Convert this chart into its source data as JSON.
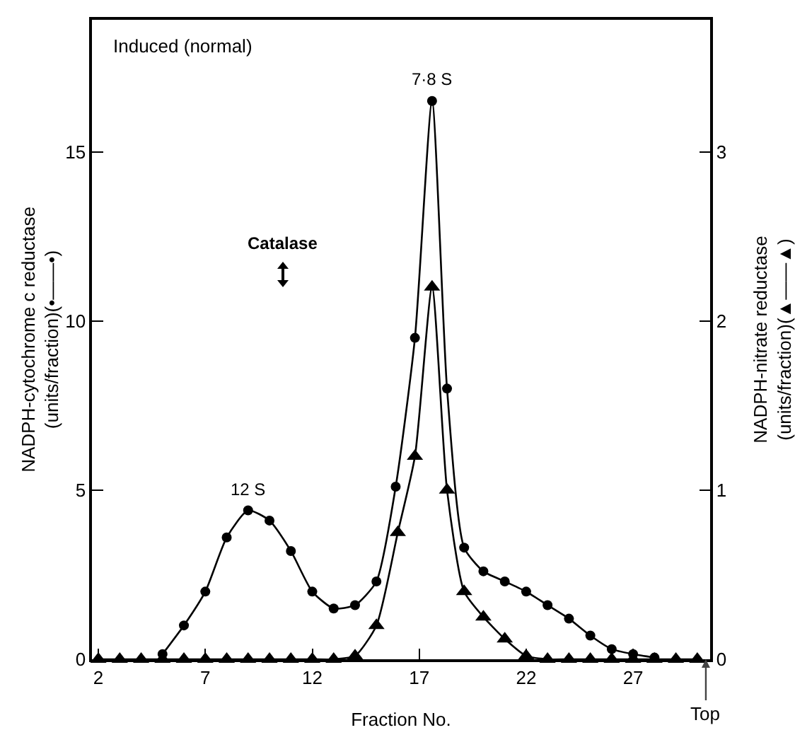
{
  "chart_data": {
    "type": "line",
    "title": "Induced (normal)",
    "xlabel": "Fraction No.",
    "ylabel": "NADPH-cytochrome c reductase\n(units/fraction)(•——•)",
    "y2label": "NADPH-nitrate reductase\n(units/fraction)(▲——▲)",
    "series": [
      {
        "color": "#000000",
        "marker": "triangle",
        "axis": "y2",
        "x": [
          2,
          3,
          4,
          5,
          6,
          7,
          8,
          9,
          10,
          11,
          12,
          13,
          14,
          15,
          16,
          16.8,
          17.6,
          18.3,
          19.1,
          20,
          21,
          22,
          23,
          24,
          25,
          26,
          27,
          28,
          29,
          30
        ],
        "values": [
          0,
          0,
          0,
          0,
          0,
          0,
          0,
          0,
          0,
          0,
          0,
          0,
          0.02,
          0.2,
          0.75,
          1.2,
          2.2,
          1.0,
          0.4,
          0.25,
          0.12,
          0.02,
          0,
          0,
          0,
          0,
          0,
          0,
          0,
          0
        ]
      },
      {
        "color": "#000000",
        "marker": "circle",
        "x": [
          5,
          6,
          7,
          8,
          9,
          10,
          11,
          12,
          13,
          14,
          15,
          15.9,
          16.8,
          17.6,
          18.3,
          19.1,
          20,
          21,
          22,
          23,
          24,
          25,
          26,
          27,
          28
        ],
        "values": [
          0.15,
          1.0,
          2.0,
          3.6,
          4.4,
          4.1,
          3.2,
          2.0,
          1.5,
          1.6,
          2.3,
          5.1,
          9.5,
          16.5,
          8.0,
          3.3,
          2.6,
          2.3,
          2.0,
          1.6,
          1.2,
          0.7,
          0.3,
          0.15,
          0.05
        ]
      }
    ],
    "annotations": [
      {
        "text": "7·8 S",
        "x": 17.6,
        "y": 16.5
      },
      {
        "text": "12 S",
        "x": 9,
        "y": 4.4
      },
      "Catalase",
      {
        "text": "Top",
        "x": 30.4,
        "y": 0
      }
    ],
    "xlim": [
      1.7,
      30.6
    ],
    "xticks": [
      2,
      7,
      12,
      17,
      22,
      27
    ],
    "ylim": [
      0,
      18.9
    ],
    "yticks": [
      0,
      5,
      10,
      15
    ],
    "y2lim": [
      0,
      3.78
    ],
    "y2ticks": [
      0,
      1,
      2,
      3
    ],
    "grid": false,
    "line_style": "solid"
  }
}
